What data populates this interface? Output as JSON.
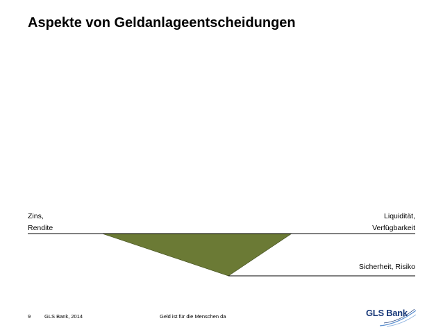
{
  "slide": {
    "title": "Aspekte von Geldanlageentscheidungen"
  },
  "diagram": {
    "left_label_line1": "Zins,",
    "left_label_line2": "Rendite",
    "right_label_line1": "Liquidität,",
    "right_label_line2": "Verfügbarkeit",
    "bottom_label": "Sicherheit, Risiko",
    "triangle_color": "#6b7a35",
    "line_color": "#000000"
  },
  "footer": {
    "page_number": "9",
    "source": "GLS Bank, 2014",
    "slogan": "Geld ist für die Menschen da",
    "logo_text": "GLS Bank",
    "logo_color": "#1a3a7a"
  }
}
